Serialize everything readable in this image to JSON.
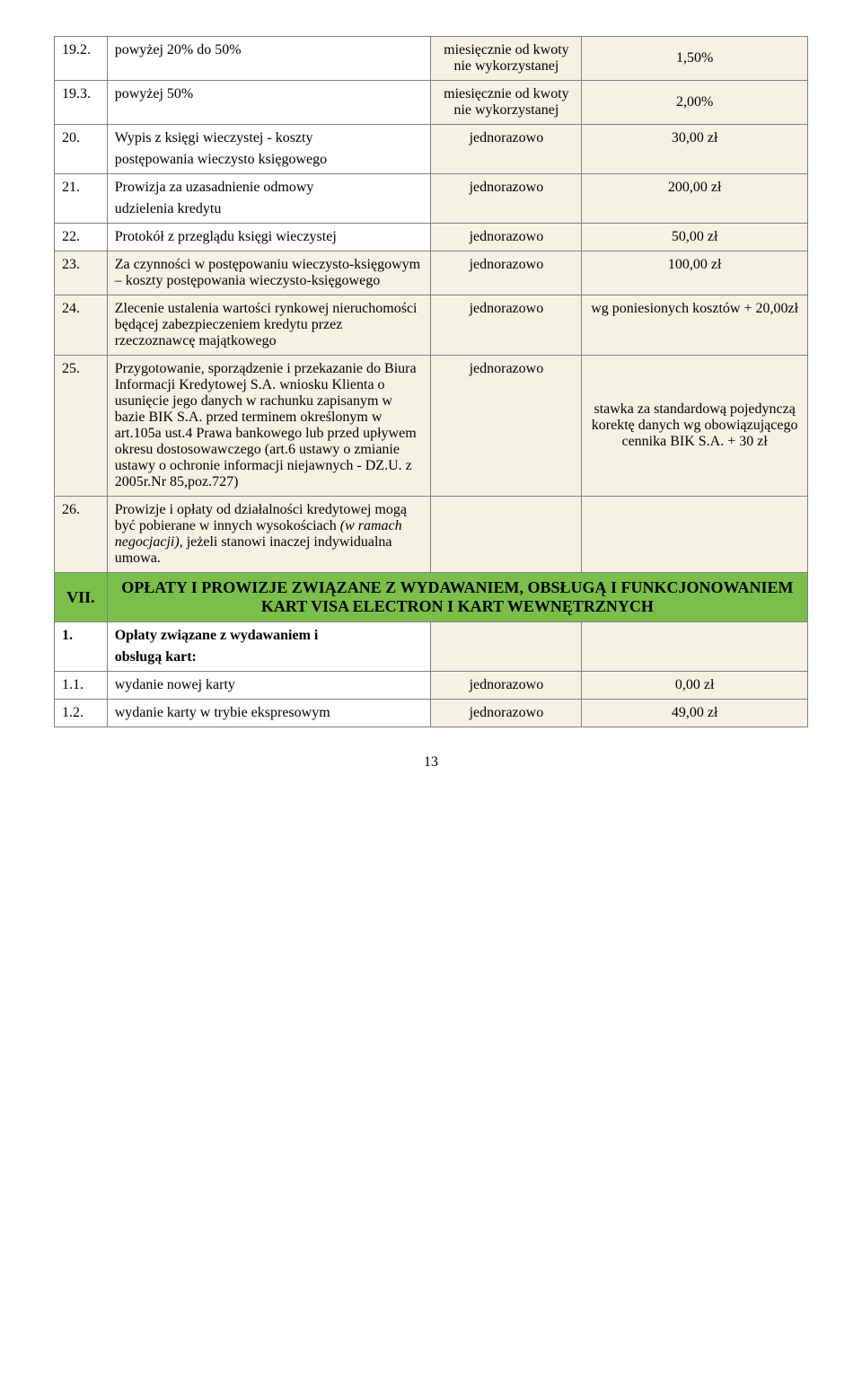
{
  "rows": {
    "r1": {
      "num": "19.2.",
      "desc": "powyżej 20% do 50%",
      "mode": "miesięcznie od kwoty nie wykorzystanej",
      "val": "1,50%"
    },
    "r2": {
      "num": "19.3.",
      "desc": "powyżej 50%",
      "mode": "miesięcznie od kwoty nie wykorzystanej",
      "val": "2,00%"
    },
    "r3": {
      "num": "20.",
      "desc1": "Wypis z księgi wieczystej - koszty",
      "desc2": "postępowania wieczysto księgowego",
      "mode": "jednorazowo",
      "val": "30,00 zł"
    },
    "r4": {
      "num": "21.",
      "desc1": "Prowizja za uzasadnienie odmowy",
      "desc2": "udzielenia kredytu",
      "mode": "jednorazowo",
      "val": "200,00 zł"
    },
    "r5": {
      "num": "22.",
      "desc": "Protokół z przeglądu księgi wieczystej",
      "mode": "jednorazowo",
      "val": "50,00 zł"
    },
    "r6": {
      "num": "23.",
      "desc": "Za czynności w postępowaniu wieczysto-księgowym – koszty postępowania wieczysto-księgowego",
      "mode": "jednorazowo",
      "val": "100,00 zł"
    },
    "r7": {
      "num": "24.",
      "desc": "Zlecenie ustalenia wartości rynkowej nieruchomości będącej zabezpieczeniem kredytu przez rzeczoznawcę majątkowego",
      "mode": "jednorazowo",
      "val": "wg poniesionych kosztów + 20,00zł"
    },
    "r8": {
      "num": "25.",
      "desc": "Przygotowanie, sporządzenie i przekazanie do Biura Informacji Kredytowej S.A. wniosku Klienta o usunięcie jego danych w rachunku zapisanym w bazie BIK S.A. przed terminem określonym w art.105a ust.4 Prawa bankowego lub przed upływem okresu dostosowawczego (art.6 ustawy o zmianie ustawy o ochronie informacji niejawnych - DZ.U. z 2005r.Nr 85,poz.727)",
      "mode": "jednorazowo",
      "val": "stawka za standardową pojedynczą korektę danych wg obowiązującego cennika BIK S.A. + 30 zł"
    },
    "r9": {
      "num": "26.",
      "desc_pre": "Prowizje i opłaty od działalności kredytowej mogą być pobierane w innych wysokościach ",
      "desc_italic": "(w ramach negocjacji)",
      "desc_post": ", jeżeli stanowi inaczej indywidualna umowa."
    }
  },
  "section": {
    "num": "VII.",
    "title": "OPŁATY I PROWIZJE ZWIĄZANE Z WYDAWANIEM, OBSŁUGĄ I FUNKCJONOWANIEM KART VISA ELECTRON I KART WEWNĘTRZNYCH"
  },
  "rowsB": {
    "b1": {
      "num": "1.",
      "desc1": "Opłaty związane z wydawaniem i",
      "desc2": "obsługą kart:"
    },
    "b2": {
      "num": "1.1.",
      "desc": "wydanie nowej karty",
      "mode": "jednorazowo",
      "val": "0,00 zł"
    },
    "b3": {
      "num": "1.2.",
      "desc": "wydanie karty w trybie ekspresowym",
      "mode": "jednorazowo",
      "val": "49,00 zł"
    }
  },
  "pageNumber": "13"
}
